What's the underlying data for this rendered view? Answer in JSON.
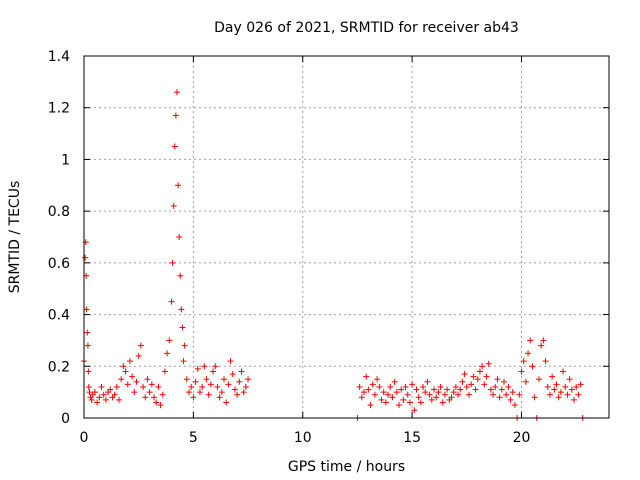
{
  "chart_data": {
    "type": "scatter",
    "title": "Day 026 of 2021, SRMTID for receiver ab43",
    "xlabel": "GPS time / hours",
    "ylabel": "SRMTID / TECUs",
    "xlim": [
      0,
      24
    ],
    "ylim": [
      0,
      1.4
    ],
    "xticks": [
      0,
      5,
      10,
      15,
      20
    ],
    "yticks": [
      0,
      0.2,
      0.4,
      0.6,
      0.8,
      1.0,
      1.2,
      1.4
    ],
    "xtick_labels": [
      "0",
      "5",
      "10",
      "15",
      "20"
    ],
    "ytick_labels": [
      "0",
      "0.2",
      "0.4",
      "0.6",
      "0.8",
      "1",
      "1.2",
      "1.4"
    ],
    "grid": true,
    "marker": "+",
    "color": "#ff0000",
    "series": [
      {
        "name": "SRMTID",
        "x": [
          0.0,
          0.05,
          0.08,
          0.1,
          0.12,
          0.15,
          0.18,
          0.2,
          0.22,
          0.25,
          0.3,
          0.35,
          0.4,
          0.5,
          0.6,
          0.7,
          0.8,
          0.9,
          1.0,
          1.1,
          1.2,
          1.3,
          1.4,
          1.5,
          1.6,
          1.7,
          1.8,
          1.9,
          2.0,
          2.1,
          2.2,
          2.3,
          2.4,
          2.5,
          2.6,
          2.7,
          2.8,
          2.9,
          3.0,
          3.1,
          3.2,
          3.3,
          3.4,
          3.5,
          3.6,
          3.7,
          3.8,
          3.9,
          4.0,
          4.05,
          4.1,
          4.15,
          4.2,
          4.25,
          4.3,
          4.35,
          4.4,
          4.45,
          4.5,
          4.55,
          4.6,
          4.7,
          4.8,
          4.9,
          5.0,
          5.1,
          5.2,
          5.3,
          5.4,
          5.5,
          5.6,
          5.7,
          5.8,
          5.9,
          6.0,
          6.1,
          6.2,
          6.3,
          6.4,
          6.5,
          6.6,
          6.7,
          6.8,
          6.9,
          7.0,
          7.1,
          7.2,
          7.3,
          7.4,
          7.5,
          12.5,
          12.6,
          12.7,
          12.8,
          12.9,
          13.0,
          13.1,
          13.2,
          13.3,
          13.4,
          13.5,
          13.6,
          13.7,
          13.8,
          13.9,
          14.0,
          14.1,
          14.2,
          14.3,
          14.4,
          14.5,
          14.6,
          14.7,
          14.8,
          14.9,
          15.0,
          15.1,
          15.2,
          15.3,
          15.4,
          15.5,
          15.6,
          15.7,
          15.8,
          15.9,
          16.0,
          16.1,
          16.2,
          16.3,
          16.4,
          16.5,
          16.6,
          16.7,
          16.8,
          16.9,
          17.0,
          17.1,
          17.2,
          17.3,
          17.4,
          17.5,
          17.6,
          17.7,
          17.8,
          17.9,
          18.0,
          18.1,
          18.2,
          18.3,
          18.4,
          18.5,
          18.6,
          18.7,
          18.8,
          18.9,
          19.0,
          19.1,
          19.2,
          19.3,
          19.4,
          19.5,
          19.6,
          19.7,
          19.8,
          19.9,
          20.0,
          20.1,
          20.2,
          20.3,
          20.4,
          20.5,
          20.6,
          20.7,
          20.8,
          20.9,
          21.0,
          21.1,
          21.2,
          21.3,
          21.4,
          21.5,
          21.6,
          21.7,
          21.8,
          21.9,
          22.0,
          22.1,
          22.2,
          22.3,
          22.4,
          22.5,
          22.6,
          22.7,
          22.8
        ],
        "y": [
          0.22,
          0.62,
          0.68,
          0.55,
          0.42,
          0.33,
          0.28,
          0.18,
          0.12,
          0.1,
          0.08,
          0.07,
          0.09,
          0.1,
          0.06,
          0.08,
          0.12,
          0.09,
          0.07,
          0.1,
          0.11,
          0.08,
          0.09,
          0.12,
          0.07,
          0.15,
          0.2,
          0.18,
          0.13,
          0.22,
          0.16,
          0.1,
          0.14,
          0.24,
          0.28,
          0.12,
          0.08,
          0.15,
          0.1,
          0.13,
          0.08,
          0.06,
          0.12,
          0.05,
          0.09,
          0.18,
          0.25,
          0.3,
          0.45,
          0.6,
          0.82,
          1.05,
          1.17,
          1.26,
          0.9,
          0.7,
          0.55,
          0.42,
          0.35,
          0.22,
          0.28,
          0.15,
          0.1,
          0.12,
          0.08,
          0.14,
          0.19,
          0.1,
          0.12,
          0.2,
          0.15,
          0.09,
          0.13,
          0.18,
          0.2,
          0.12,
          0.08,
          0.1,
          0.15,
          0.06,
          0.13,
          0.22,
          0.17,
          0.11,
          0.09,
          0.14,
          0.18,
          0.1,
          0.12,
          0.15,
          0.0,
          0.12,
          0.08,
          0.1,
          0.16,
          0.11,
          0.05,
          0.13,
          0.09,
          0.15,
          0.12,
          0.07,
          0.1,
          0.06,
          0.09,
          0.12,
          0.08,
          0.14,
          0.1,
          0.05,
          0.11,
          0.07,
          0.12,
          0.09,
          0.06,
          0.13,
          0.03,
          0.11,
          0.08,
          0.06,
          0.12,
          0.1,
          0.14,
          0.09,
          0.07,
          0.11,
          0.08,
          0.1,
          0.12,
          0.06,
          0.09,
          0.11,
          0.07,
          0.08,
          0.1,
          0.12,
          0.09,
          0.11,
          0.14,
          0.17,
          0.12,
          0.09,
          0.13,
          0.16,
          0.11,
          0.15,
          0.18,
          0.2,
          0.13,
          0.16,
          0.21,
          0.11,
          0.09,
          0.12,
          0.15,
          0.08,
          0.11,
          0.14,
          0.09,
          0.12,
          0.07,
          0.1,
          0.05,
          0.0,
          0.09,
          0.18,
          0.22,
          0.14,
          0.25,
          0.3,
          0.2,
          0.08,
          0.0,
          0.15,
          0.28,
          0.3,
          0.22,
          0.12,
          0.09,
          0.16,
          0.11,
          0.13,
          0.08,
          0.1,
          0.18,
          0.12,
          0.09,
          0.15,
          0.11,
          0.07,
          0.12,
          0.09,
          0.13,
          0.0
        ]
      }
    ]
  }
}
